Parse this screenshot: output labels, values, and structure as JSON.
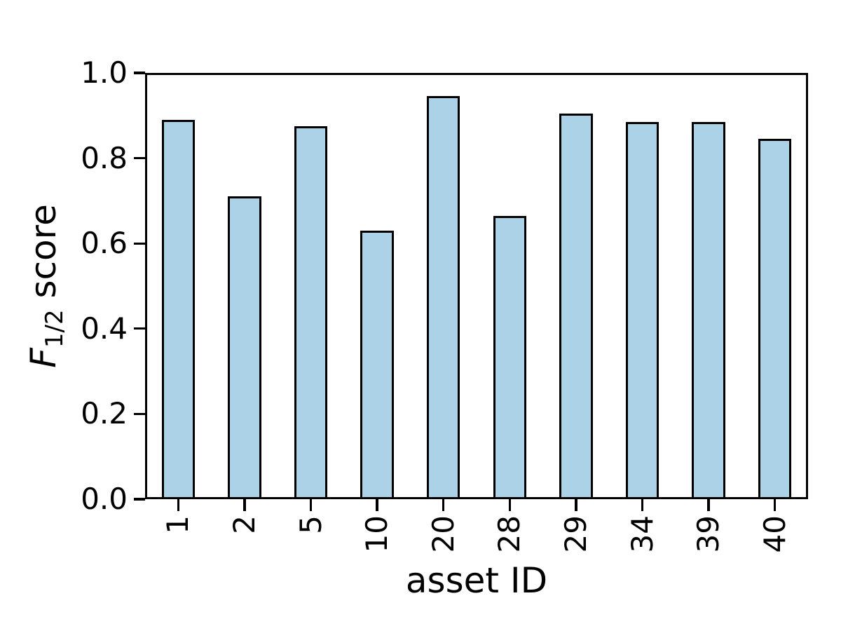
{
  "figure": {
    "background": "#ffffff",
    "ylabel": {
      "main": "F",
      "sub": "1/2",
      "rest": " score"
    }
  },
  "chart_data": {
    "type": "bar",
    "title": "",
    "xlabel": "asset ID",
    "ylabel": "F_{1/2} score",
    "categories": [
      "1",
      "2",
      "5",
      "10",
      "20",
      "28",
      "29",
      "34",
      "39",
      "40"
    ],
    "values": [
      0.89,
      0.71,
      0.875,
      0.63,
      0.945,
      0.665,
      0.905,
      0.885,
      0.885,
      0.845
    ],
    "ylim": [
      0.0,
      1.0
    ],
    "yticks": [
      "0.0",
      "0.2",
      "0.4",
      "0.6",
      "0.8",
      "1.0"
    ],
    "bar_width_fraction": 0.5,
    "bar_fill": "#abd2e6",
    "bar_edge": "#000000",
    "xtick_rotation": 90,
    "grid": false,
    "legend": null
  }
}
